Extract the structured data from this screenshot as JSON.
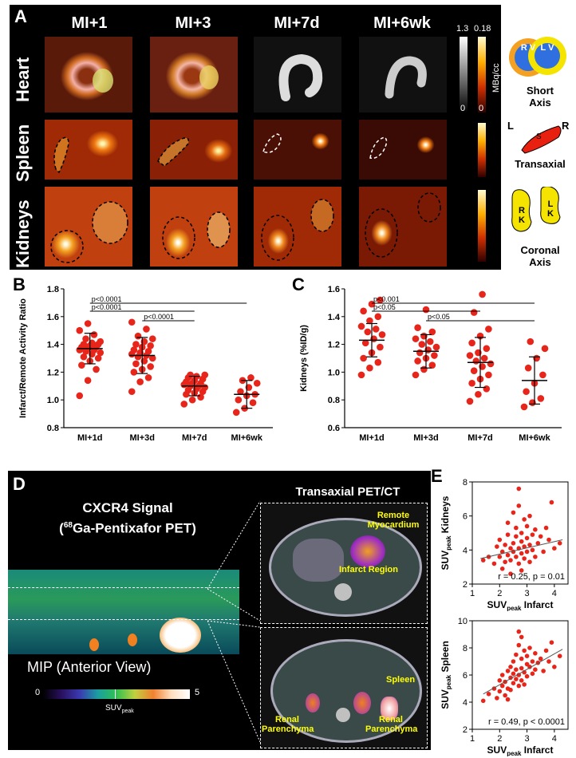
{
  "panelA": {
    "label": "A",
    "columns": [
      "MI+1",
      "MI+3",
      "MI+7d",
      "MI+6wk"
    ],
    "rows": [
      "Heart",
      "Spleen",
      "Kidneys"
    ],
    "colorbar_gray": {
      "max": "1.3",
      "min": "0"
    },
    "colorbar_hot": {
      "max": "0.18",
      "min": "0",
      "unit": "MBq/cc"
    },
    "diagrams": {
      "short_axis": {
        "rv": "R V",
        "lv": "L V",
        "caption_line1": "Short",
        "caption_line2": "Axis"
      },
      "transaxial": {
        "left": "L",
        "right": "R",
        "organ": "S",
        "caption": "Transaxial"
      },
      "coronal": {
        "rk": "R K",
        "lk": "L K",
        "caption_line1": "Coronal",
        "caption_line2": "Axis"
      }
    }
  },
  "panelB": {
    "label": "B",
    "chart_data": {
      "type": "scatter",
      "ylabel": "Infarct/Remote Activity Ratio",
      "ylim": [
        0.8,
        1.8
      ],
      "yticks": [
        "0.8",
        "1.0",
        "1.2",
        "1.4",
        "1.6",
        "1.8"
      ],
      "categories": [
        "MI+1d",
        "MI+3d",
        "MI+7d",
        "MI+6wk"
      ],
      "means": [
        1.37,
        1.32,
        1.1,
        1.04
      ],
      "sds": [
        0.11,
        0.13,
        0.07,
        0.1
      ],
      "points": [
        [
          1.03,
          1.14,
          1.22,
          1.25,
          1.28,
          1.3,
          1.31,
          1.33,
          1.34,
          1.35,
          1.36,
          1.36,
          1.37,
          1.38,
          1.38,
          1.39,
          1.4,
          1.4,
          1.41,
          1.42,
          1.44,
          1.47,
          1.5,
          1.55
        ],
        [
          1.06,
          1.13,
          1.16,
          1.2,
          1.22,
          1.24,
          1.26,
          1.28,
          1.3,
          1.31,
          1.32,
          1.33,
          1.34,
          1.35,
          1.36,
          1.38,
          1.39,
          1.4,
          1.42,
          1.44,
          1.46,
          1.51,
          1.56
        ],
        [
          0.97,
          1.0,
          1.02,
          1.04,
          1.05,
          1.06,
          1.07,
          1.08,
          1.09,
          1.1,
          1.1,
          1.11,
          1.12,
          1.12,
          1.13,
          1.14,
          1.15,
          1.16,
          1.17,
          1.18,
          1.18
        ],
        [
          0.91,
          0.94,
          0.98,
          1.0,
          1.03,
          1.04,
          1.06,
          1.09,
          1.12,
          1.14,
          1.16
        ]
      ],
      "significance": [
        {
          "text": "p<0.0001",
          "from": 0,
          "to": 3
        },
        {
          "text": "p<0.0001",
          "from": 0,
          "to": 2
        },
        {
          "text": "p<0.0001",
          "from": 1,
          "to": 2
        }
      ]
    }
  },
  "panelC": {
    "label": "C",
    "chart_data": {
      "type": "scatter",
      "ylabel": "Kidneys (%ID/g)",
      "ylim": [
        0.6,
        1.6
      ],
      "yticks": [
        "0.6",
        "0.8",
        "1.0",
        "1.2",
        "1.4",
        "1.6"
      ],
      "categories": [
        "MI+1d",
        "MI+3d",
        "MI+7d",
        "MI+6wk"
      ],
      "means": [
        1.23,
        1.15,
        1.07,
        0.94
      ],
      "sds": [
        0.12,
        0.12,
        0.18,
        0.17
      ],
      "points": [
        [
          0.98,
          1.03,
          1.07,
          1.1,
          1.14,
          1.18,
          1.21,
          1.24,
          1.27,
          1.29,
          1.31,
          1.33,
          1.37,
          1.4,
          1.44,
          1.49,
          1.52
        ],
        [
          0.98,
          1.02,
          1.05,
          1.08,
          1.1,
          1.12,
          1.14,
          1.16,
          1.18,
          1.2,
          1.22,
          1.24,
          1.26,
          1.29,
          1.32,
          1.45
        ],
        [
          0.79,
          0.84,
          0.88,
          0.92,
          0.95,
          0.98,
          1.01,
          1.04,
          1.06,
          1.08,
          1.1,
          1.12,
          1.14,
          1.17,
          1.21,
          1.26,
          1.31,
          1.43,
          1.56
        ],
        [
          0.75,
          0.78,
          0.81,
          0.86,
          0.92,
          0.98,
          1.03,
          1.1,
          1.17,
          1.22
        ]
      ],
      "significance": [
        {
          "text": "p<0.001",
          "from": 0,
          "to": 3
        },
        {
          "text": "p<0.05",
          "from": 0,
          "to": 2
        },
        {
          "text": "p<0.05",
          "from": 1,
          "to": 3
        }
      ]
    }
  },
  "panelD": {
    "label": "D",
    "title_line1": "CXCR4 Signal",
    "title_line2_sup": "68",
    "title_line2_rest": "Ga-Pentixafor PET)",
    "title_line2_open": "(",
    "mip_caption": "MIP (Anterior View)",
    "colorbar_min": "0",
    "colorbar_max": "5",
    "colorbar_label": "SUV",
    "colorbar_label_sub": "peak",
    "transaxial_title": "Transaxial PET/CT",
    "annotations_top": [
      "Remote Myocardium",
      "Infarct Region"
    ],
    "annotations_bottom": [
      "Spleen",
      "Renal Parenchyma",
      "Renal Parenchyma"
    ]
  },
  "panelE": {
    "label": "E",
    "charts": [
      {
        "type": "scatter",
        "ylabel_pre": "SUV",
        "ylabel_sub": "peak",
        "ylabel_post": " Kidneys",
        "xlabel_pre": "SUV",
        "xlabel_sub": "peak",
        "xlabel_post": " Infarct",
        "xlim": [
          1,
          4.5
        ],
        "ylim": [
          2,
          8
        ],
        "xticks": [
          "1",
          "2",
          "3",
          "4"
        ],
        "yticks": [
          "2",
          "4",
          "6",
          "8"
        ],
        "stat": "r = 0.25, p = 0.01",
        "trend": [
          [
            1.3,
            3.5
          ],
          [
            4.3,
            4.6
          ]
        ],
        "points": [
          [
            1.4,
            3.4
          ],
          [
            1.6,
            3.6
          ],
          [
            1.8,
            3.2
          ],
          [
            1.9,
            4.2
          ],
          [
            2.0,
            3.6
          ],
          [
            2.0,
            4.6
          ],
          [
            2.1,
            2.9
          ],
          [
            2.1,
            3.9
          ],
          [
            2.2,
            4.3
          ],
          [
            2.2,
            3.3
          ],
          [
            2.3,
            4.9
          ],
          [
            2.3,
            3.7
          ],
          [
            2.3,
            5.6
          ],
          [
            2.4,
            4.1
          ],
          [
            2.4,
            3.4
          ],
          [
            2.4,
            2.6
          ],
          [
            2.5,
            4.4
          ],
          [
            2.5,
            3.9
          ],
          [
            2.5,
            6.2
          ],
          [
            2.6,
            4.8
          ],
          [
            2.6,
            3.6
          ],
          [
            2.6,
            5.3
          ],
          [
            2.7,
            4.1
          ],
          [
            2.7,
            3.2
          ],
          [
            2.7,
            6.6
          ],
          [
            2.7,
            7.6
          ],
          [
            2.8,
            4.5
          ],
          [
            2.8,
            3.8
          ],
          [
            2.8,
            5.0
          ],
          [
            2.8,
            2.8
          ],
          [
            2.9,
            4.2
          ],
          [
            2.9,
            5.8
          ],
          [
            2.9,
            3.5
          ],
          [
            3.0,
            4.7
          ],
          [
            3.0,
            3.9
          ],
          [
            3.0,
            5.4
          ],
          [
            3.1,
            4.3
          ],
          [
            3.1,
            6.0
          ],
          [
            3.1,
            3.3
          ],
          [
            3.2,
            4.9
          ],
          [
            3.2,
            4.0
          ],
          [
            3.3,
            5.2
          ],
          [
            3.3,
            3.6
          ],
          [
            3.4,
            4.4
          ],
          [
            3.5,
            4.8
          ],
          [
            3.6,
            3.9
          ],
          [
            3.7,
            5.3
          ],
          [
            3.8,
            4.6
          ],
          [
            3.9,
            6.8
          ],
          [
            4.0,
            4.1
          ],
          [
            4.2,
            4.4
          ]
        ]
      },
      {
        "type": "scatter",
        "ylabel_pre": "SUV",
        "ylabel_sub": "peak",
        "ylabel_post": " Spleen",
        "xlabel_pre": "SUV",
        "xlabel_sub": "peak",
        "xlabel_post": " Infarct",
        "xlim": [
          1,
          4.5
        ],
        "ylim": [
          2,
          10
        ],
        "xticks": [
          "1",
          "2",
          "3",
          "4"
        ],
        "yticks": [
          "2",
          "4",
          "6",
          "8",
          "10"
        ],
        "stat": "r = 0.49, p < 0.0001",
        "trend": [
          [
            1.4,
            4.6
          ],
          [
            4.3,
            7.9
          ]
        ],
        "points": [
          [
            1.4,
            4.1
          ],
          [
            1.6,
            4.6
          ],
          [
            1.8,
            5.0
          ],
          [
            1.9,
            4.3
          ],
          [
            2.0,
            5.6
          ],
          [
            2.0,
            4.8
          ],
          [
            2.1,
            5.2
          ],
          [
            2.1,
            6.0
          ],
          [
            2.2,
            4.5
          ],
          [
            2.2,
            5.5
          ],
          [
            2.3,
            6.3
          ],
          [
            2.3,
            5.0
          ],
          [
            2.3,
            4.2
          ],
          [
            2.4,
            5.8
          ],
          [
            2.4,
            6.6
          ],
          [
            2.4,
            4.9
          ],
          [
            2.5,
            6.1
          ],
          [
            2.5,
            5.4
          ],
          [
            2.5,
            7.0
          ],
          [
            2.6,
            5.7
          ],
          [
            2.6,
            6.4
          ],
          [
            2.6,
            7.5
          ],
          [
            2.7,
            6.0
          ],
          [
            2.7,
            5.2
          ],
          [
            2.7,
            8.2
          ],
          [
            2.7,
            9.2
          ],
          [
            2.8,
            6.5
          ],
          [
            2.8,
            5.6
          ],
          [
            2.8,
            7.2
          ],
          [
            2.8,
            8.8
          ],
          [
            2.9,
            6.2
          ],
          [
            2.9,
            7.8
          ],
          [
            2.9,
            5.3
          ],
          [
            3.0,
            6.8
          ],
          [
            3.0,
            7.4
          ],
          [
            3.0,
            5.9
          ],
          [
            3.1,
            6.6
          ],
          [
            3.1,
            8.0
          ],
          [
            3.2,
            7.0
          ],
          [
            3.2,
            6.1
          ],
          [
            3.3,
            7.6
          ],
          [
            3.3,
            6.4
          ],
          [
            3.4,
            6.9
          ],
          [
            3.5,
            7.2
          ],
          [
            3.6,
            6.3
          ],
          [
            3.7,
            7.8
          ],
          [
            3.8,
            7.0
          ],
          [
            3.9,
            8.4
          ],
          [
            4.0,
            6.6
          ],
          [
            4.2,
            7.4
          ]
        ]
      }
    ]
  }
}
